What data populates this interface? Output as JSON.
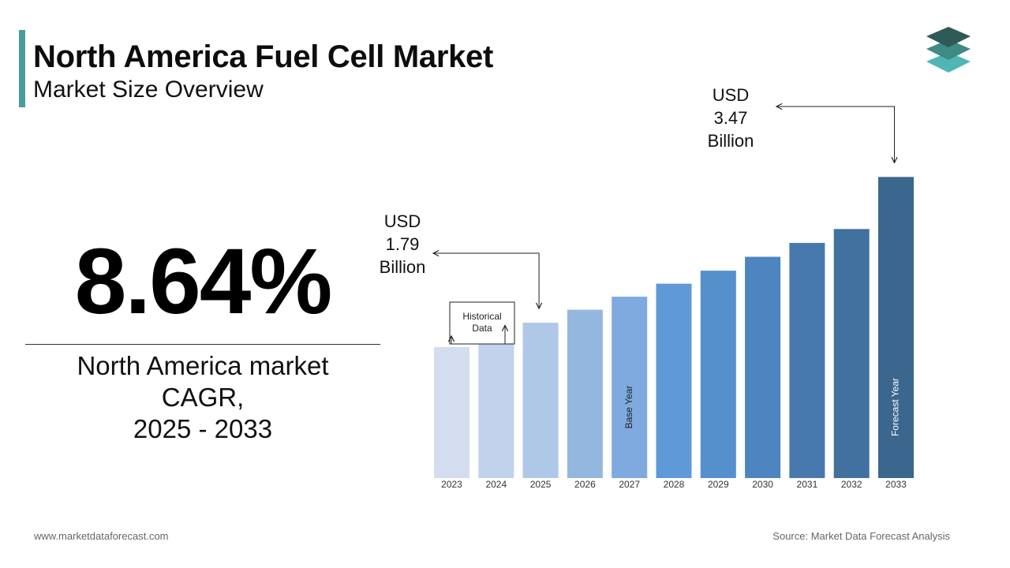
{
  "header": {
    "title": "North America Fuel Cell Market",
    "subtitle": "Market Size Overview"
  },
  "kpi": {
    "value": "8.64%",
    "caption_lines": [
      "North America market",
      "CAGR,",
      "2025 - 2033"
    ]
  },
  "chart_data": {
    "type": "bar",
    "categories": [
      "2023",
      "2024",
      "2025",
      "2026",
      "2027",
      "2028",
      "2029",
      "2030",
      "2031",
      "2032",
      "2033"
    ],
    "values": [
      1.51,
      1.65,
      1.79,
      1.94,
      2.09,
      2.24,
      2.39,
      2.55,
      2.71,
      2.87,
      3.47
    ],
    "colors": [
      "#d3ddef",
      "#c0d2ec",
      "#afc8e7",
      "#94b7df",
      "#7eaadf",
      "#6099d8",
      "#5590cd",
      "#4c85c0",
      "#4779ae",
      "#41719f",
      "#3b668e"
    ],
    "bar_labels": [
      {
        "category": "2027",
        "text": "Base Year"
      },
      {
        "category": "2033",
        "text": "Forecast Year"
      }
    ],
    "annotations": [
      {
        "category": "2025",
        "lines": [
          "USD",
          "1.79",
          "Billion"
        ]
      },
      {
        "category": "2033",
        "lines": [
          "USD",
          "3.47",
          "Billion"
        ]
      }
    ],
    "historical_label": [
      "Historical",
      "Data"
    ],
    "ylim": [
      0,
      3.6
    ],
    "grid": false,
    "legend": "none"
  },
  "footer": {
    "website": "www.marketdataforecast.com",
    "source": "Source: Market Data Forecast Analysis"
  }
}
